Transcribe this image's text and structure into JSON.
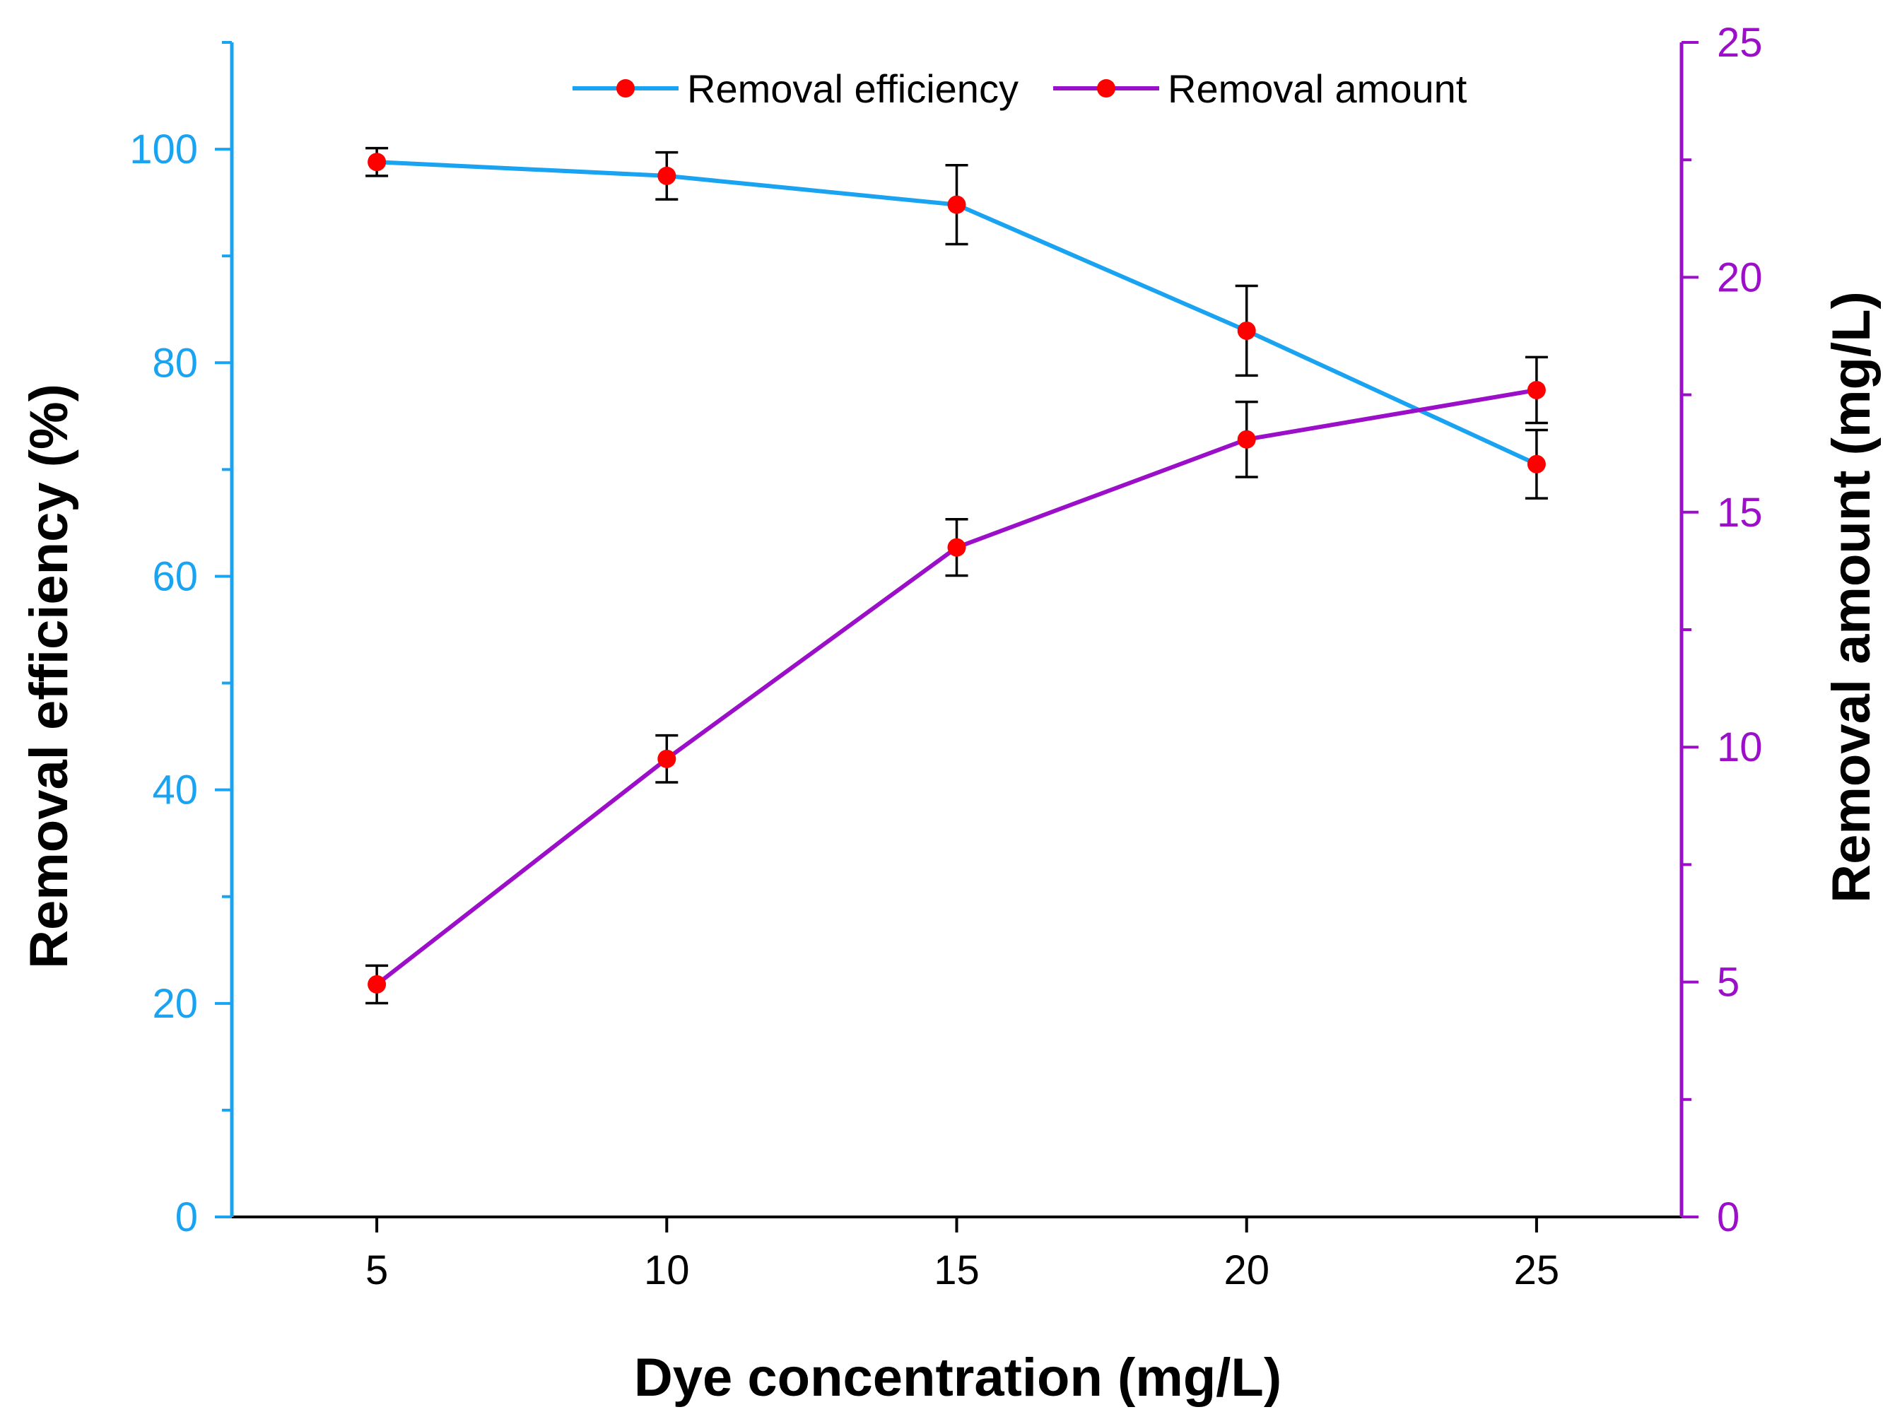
{
  "chart_data": {
    "type": "line",
    "title": "",
    "xlabel": "Dye concentration (mg/L)",
    "ylabel_left": "Removal efficiency  (%)",
    "ylabel_right": "Removal amount (mg/L)",
    "x": [
      5,
      10,
      15,
      20,
      25
    ],
    "xlim": [
      2.5,
      27.5
    ],
    "ylim_left": [
      0,
      110
    ],
    "ylim_right": [
      0,
      25
    ],
    "x_ticks": [
      "5",
      "10",
      "15",
      "20",
      "25"
    ],
    "y_left_ticks": [
      "0",
      "20",
      "40",
      "60",
      "80",
      "100"
    ],
    "y_right_ticks": [
      "0",
      "5",
      "10",
      "15",
      "20",
      "25"
    ],
    "legend_position": "top-center",
    "series": [
      {
        "name": "Removal efficiency",
        "axis": "left",
        "color": "#1aa3f0",
        "marker_color": "#ff0000",
        "values": [
          98.8,
          97.5,
          94.8,
          83.0,
          70.5
        ],
        "errors": [
          1.3,
          2.2,
          3.7,
          4.2,
          3.2
        ]
      },
      {
        "name": "Removal amount",
        "axis": "right",
        "color": "#9b0fc8",
        "marker_color": "#ff0000",
        "values": [
          4.95,
          9.75,
          14.25,
          16.55,
          17.6
        ],
        "errors": [
          0.4,
          0.5,
          0.6,
          0.8,
          0.7
        ]
      }
    ],
    "colors": {
      "left_axis": "#1aa3f0",
      "right_axis": "#9b0fc8",
      "bottom_axis": "#000000"
    }
  }
}
